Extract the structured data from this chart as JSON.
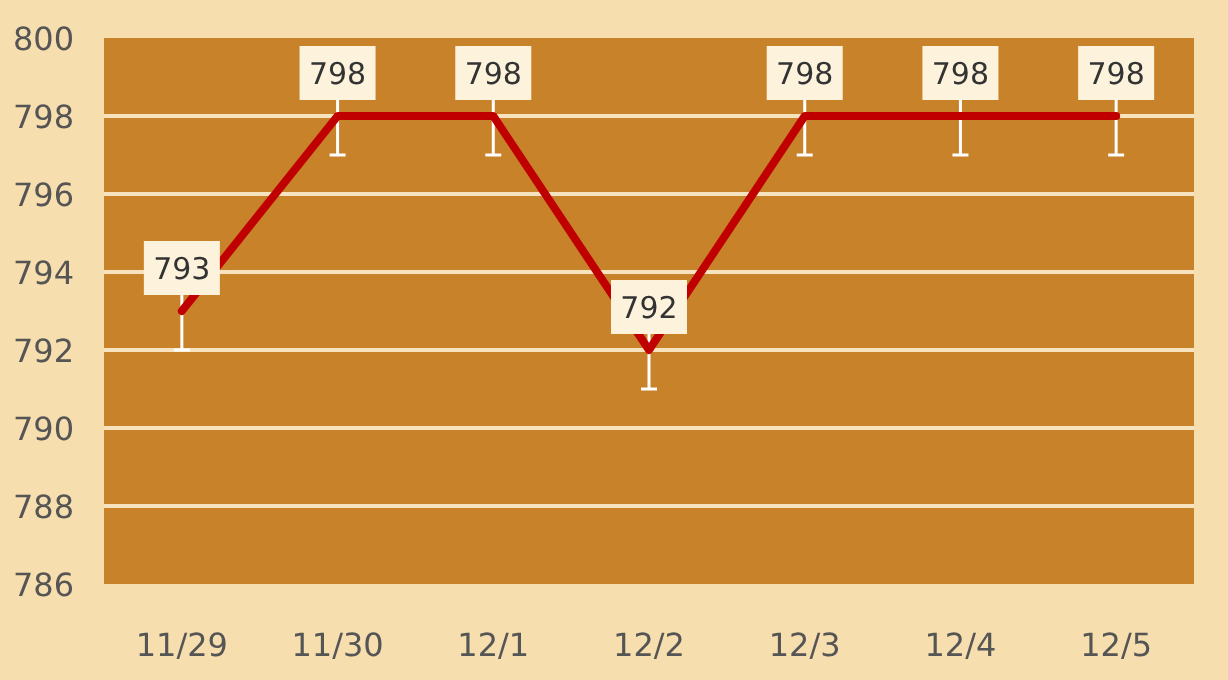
{
  "chart_data": {
    "type": "line",
    "categories": [
      "11/29",
      "11/30",
      "12/1",
      "12/2",
      "12/3",
      "12/4",
      "12/5"
    ],
    "series": [
      {
        "color": "#c00000",
        "values": [
          793,
          798,
          798,
          792,
          798,
          798,
          798
        ],
        "errors": [
          1,
          1,
          1,
          1,
          1,
          1,
          1
        ]
      }
    ],
    "ylim": [
      786,
      800
    ],
    "yticks": [
      786,
      788,
      790,
      792,
      794,
      796,
      798,
      800
    ],
    "grid": "y",
    "data_labels": true,
    "marker": "none",
    "line_style": "solid"
  }
}
